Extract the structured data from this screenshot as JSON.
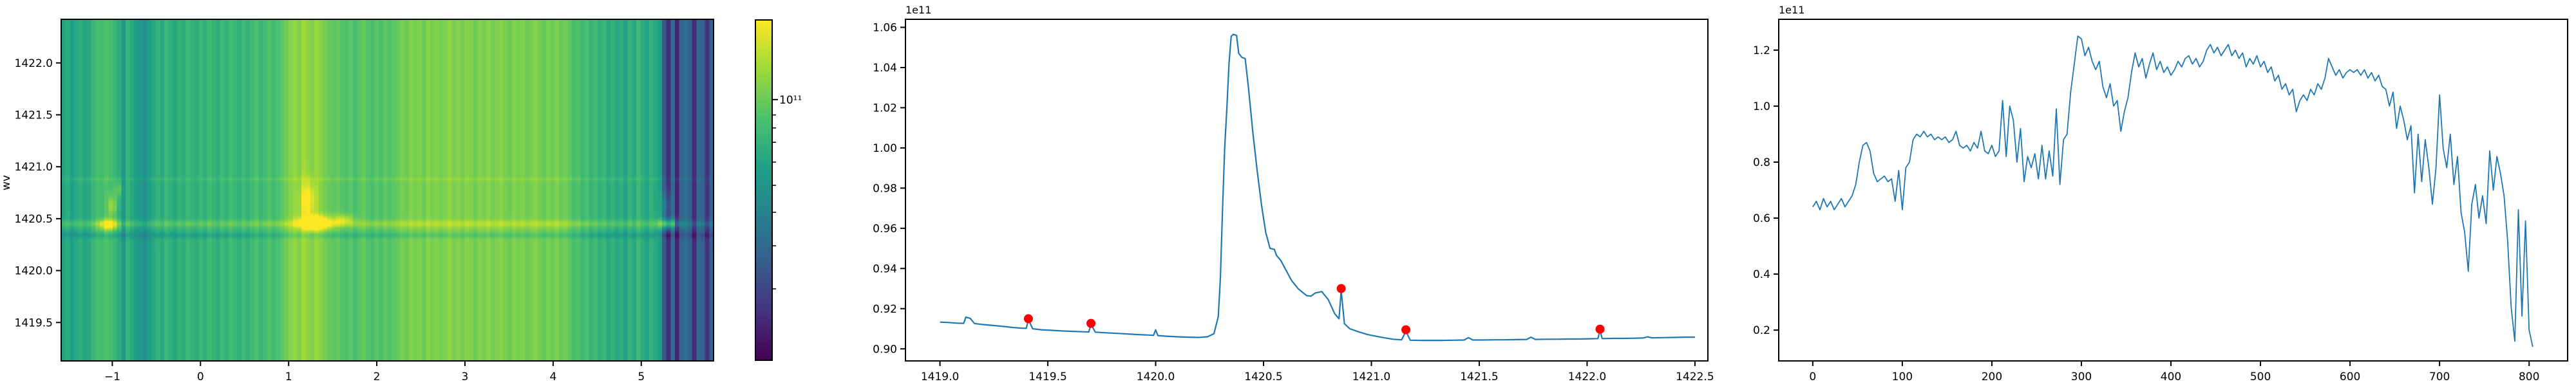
{
  "palette": {
    "line_color": "#1f77b4",
    "marker_color": "#ff0000",
    "axis_color": "#000000",
    "background": "#ffffff",
    "viridis_stops": [
      [
        0,
        "#440154"
      ],
      [
        0.14,
        "#46327e"
      ],
      [
        0.28,
        "#365c8d"
      ],
      [
        0.42,
        "#277f8e"
      ],
      [
        0.57,
        "#1fa187"
      ],
      [
        0.71,
        "#4ac16d"
      ],
      [
        0.86,
        "#a0da39"
      ],
      [
        1,
        "#fde725"
      ]
    ]
  },
  "chart_data": [
    {
      "id": "heatmap",
      "type": "heatmap",
      "ylabel": "wv",
      "xlim": [
        -1.58,
        5.82
      ],
      "ylim": [
        1419.13,
        1422.42
      ],
      "xticks": {
        "values": [
          -1,
          0,
          1,
          2,
          3,
          4,
          5
        ],
        "labels": [
          "−1",
          "0",
          "1",
          "2",
          "3",
          "4",
          "5"
        ]
      },
      "yticks": {
        "values": [
          1419.5,
          1420.0,
          1420.5,
          1421.0,
          1421.5,
          1422.0
        ],
        "labels": [
          "1419.5",
          "1420.0",
          "1420.5",
          "1421.0",
          "1421.5",
          "1422.0"
        ]
      },
      "colorbar": {
        "label": "10¹¹",
        "label_frac_from_top": 0.235,
        "minor_tick_fracs_from_top": [
          0.28,
          0.318,
          0.36,
          0.418,
          0.486,
          0.565,
          0.663,
          0.789
        ]
      },
      "columns": [
        0.58,
        0.62,
        0.57,
        0.6,
        0.63,
        0.59,
        0.61,
        0.66,
        0.7,
        0.68,
        0.72,
        0.69,
        0.66,
        0.62,
        0.52,
        0.65,
        0.6,
        0.55,
        0.54,
        0.5,
        0.56,
        0.6,
        0.64,
        0.61,
        0.66,
        0.63,
        0.6,
        0.65,
        0.62,
        0.67,
        0.64,
        0.62,
        0.66,
        0.63,
        0.68,
        0.65,
        0.62,
        0.67,
        0.64,
        0.69,
        0.66,
        0.63,
        0.68,
        0.64,
        0.68,
        0.71,
        0.66,
        0.69,
        0.72,
        0.68,
        0.71,
        0.74,
        0.78,
        0.81,
        0.84,
        0.8,
        0.86,
        0.83,
        0.8,
        0.84,
        0.81,
        0.78,
        0.76,
        0.74,
        0.76,
        0.73,
        0.71,
        0.74,
        0.7,
        0.73,
        0.76,
        0.72,
        0.7,
        0.74,
        0.71,
        0.75,
        0.72,
        0.74,
        0.76,
        0.79,
        0.77,
        0.81,
        0.78,
        0.8,
        0.77,
        0.82,
        0.79,
        0.81,
        0.78,
        0.8,
        0.83,
        0.79,
        0.81,
        0.78,
        0.82,
        0.8,
        0.77,
        0.81,
        0.79,
        0.82,
        0.78,
        0.8,
        0.82,
        0.79,
        0.77,
        0.81,
        0.78,
        0.8,
        0.77,
        0.79,
        0.81,
        0.78,
        0.76,
        0.79,
        0.77,
        0.8,
        0.76,
        0.78,
        0.74,
        0.7,
        0.72,
        0.67,
        0.7,
        0.65,
        0.68,
        0.63,
        0.66,
        0.61,
        0.64,
        0.6,
        0.63,
        0.58,
        0.65,
        0.6,
        0.67,
        0.62,
        0.58,
        0.64,
        0.6,
        0.56,
        0.28,
        0.12,
        0.34,
        0.1,
        0.32,
        0.35,
        0.3,
        0.12,
        0.33,
        0.3,
        0.14,
        0.31
      ],
      "features": {
        "ridges": [
          {
            "wv": 1420.45,
            "sigma": 0.035,
            "amp": 0.1
          },
          {
            "wv": 1420.34,
            "sigma": 0.028,
            "amp": -0.07
          },
          {
            "wv": 1420.88,
            "sigma": 0.018,
            "amp": 0.035
          }
        ],
        "blobs": [
          {
            "cx": -1.04,
            "cy": 1420.44,
            "sx": 0.1,
            "sy": 0.055,
            "amp": 0.32
          },
          {
            "cx": -1.0,
            "cy": 1420.62,
            "sx": 0.05,
            "sy": 0.1,
            "amp": 0.18
          },
          {
            "cx": -0.93,
            "cy": 1420.78,
            "sx": 0.05,
            "sy": 0.08,
            "amp": 0.12
          },
          {
            "cx": 1.3,
            "cy": 1420.46,
            "sx": 0.17,
            "sy": 0.065,
            "amp": 0.45
          },
          {
            "cx": 1.62,
            "cy": 1420.49,
            "sx": 0.12,
            "sy": 0.05,
            "amp": 0.18
          },
          {
            "cx": 1.22,
            "cy": 1420.68,
            "sx": 0.08,
            "sy": 0.17,
            "amp": 0.22
          },
          {
            "cx": 5.3,
            "cy": 1420.45,
            "sx": 0.09,
            "sy": 0.055,
            "amp": 0.4
          },
          {
            "cx": 5.28,
            "cy": 1420.63,
            "sx": 0.05,
            "sy": 0.13,
            "amp": 0.18
          }
        ]
      }
    },
    {
      "id": "spectrum",
      "type": "line",
      "offset_label": "1e11",
      "xlim": [
        1418.84,
        1422.56
      ],
      "ylim": [
        0.894,
        1.064
      ],
      "xticks": {
        "values": [
          1419.0,
          1419.5,
          1420.0,
          1420.5,
          1421.0,
          1421.5,
          1422.0,
          1422.5
        ],
        "labels": [
          "1419.0",
          "1419.5",
          "1420.0",
          "1420.5",
          "1421.0",
          "1421.5",
          "1422.0",
          "1422.5"
        ]
      },
      "yticks": {
        "values": [
          0.9,
          0.92,
          0.94,
          0.96,
          0.98,
          1.0,
          1.02,
          1.04,
          1.06
        ],
        "labels": [
          "0.90",
          "0.92",
          "0.94",
          "0.96",
          "0.98",
          "1.00",
          "1.02",
          "1.04",
          "1.06"
        ]
      },
      "points": [
        [
          1419.0,
          0.9133
        ],
        [
          1419.04,
          0.9131
        ],
        [
          1419.08,
          0.9128
        ],
        [
          1419.11,
          0.9127
        ],
        [
          1419.12,
          0.9158
        ],
        [
          1419.14,
          0.9152
        ],
        [
          1419.16,
          0.9126
        ],
        [
          1419.2,
          0.9121
        ],
        [
          1419.25,
          0.9116
        ],
        [
          1419.3,
          0.9111
        ],
        [
          1419.34,
          0.9106
        ],
        [
          1419.38,
          0.9103
        ],
        [
          1419.4,
          0.9102
        ],
        [
          1419.41,
          0.9145
        ],
        [
          1419.43,
          0.91
        ],
        [
          1419.47,
          0.9095
        ],
        [
          1419.52,
          0.9092
        ],
        [
          1419.57,
          0.9089
        ],
        [
          1419.62,
          0.9087
        ],
        [
          1419.66,
          0.9085
        ],
        [
          1419.69,
          0.9084
        ],
        [
          1419.7,
          0.9122
        ],
        [
          1419.72,
          0.9083
        ],
        [
          1419.77,
          0.908
        ],
        [
          1419.82,
          0.9077
        ],
        [
          1419.87,
          0.9074
        ],
        [
          1419.92,
          0.9071
        ],
        [
          1419.96,
          0.9069
        ],
        [
          1419.99,
          0.9067
        ],
        [
          1420.0,
          0.9095
        ],
        [
          1420.01,
          0.9066
        ],
        [
          1420.05,
          0.9063
        ],
        [
          1420.1,
          0.906
        ],
        [
          1420.15,
          0.9058
        ],
        [
          1420.2,
          0.9057
        ],
        [
          1420.24,
          0.906
        ],
        [
          1420.27,
          0.9075
        ],
        [
          1420.29,
          0.916
        ],
        [
          1420.3,
          0.935
        ],
        [
          1420.31,
          0.97
        ],
        [
          1420.32,
          1.0
        ],
        [
          1420.33,
          1.02
        ],
        [
          1420.34,
          1.042
        ],
        [
          1420.35,
          1.0555
        ],
        [
          1420.36,
          1.0565
        ],
        [
          1420.375,
          1.056
        ],
        [
          1420.385,
          1.047
        ],
        [
          1420.4,
          1.045
        ],
        [
          1420.415,
          1.0445
        ],
        [
          1420.43,
          1.03
        ],
        [
          1420.45,
          1.008
        ],
        [
          1420.47,
          0.989
        ],
        [
          1420.49,
          0.972
        ],
        [
          1420.51,
          0.958
        ],
        [
          1420.53,
          0.95
        ],
        [
          1420.55,
          0.9495
        ],
        [
          1420.56,
          0.9465
        ],
        [
          1420.58,
          0.944
        ],
        [
          1420.6,
          0.94
        ],
        [
          1420.63,
          0.934
        ],
        [
          1420.66,
          0.93
        ],
        [
          1420.68,
          0.9282
        ],
        [
          1420.7,
          0.9265
        ],
        [
          1420.72,
          0.9262
        ],
        [
          1420.74,
          0.9278
        ],
        [
          1420.77,
          0.9285
        ],
        [
          1420.8,
          0.9245
        ],
        [
          1420.83,
          0.9175
        ],
        [
          1420.85,
          0.915
        ],
        [
          1420.86,
          0.929
        ],
        [
          1420.875,
          0.9125
        ],
        [
          1420.9,
          0.91
        ],
        [
          1420.94,
          0.9085
        ],
        [
          1420.98,
          0.9072
        ],
        [
          1421.02,
          0.9063
        ],
        [
          1421.06,
          0.9055
        ],
        [
          1421.1,
          0.9048
        ],
        [
          1421.14,
          0.9045
        ],
        [
          1421.16,
          0.9088
        ],
        [
          1421.18,
          0.9043
        ],
        [
          1421.23,
          0.9042
        ],
        [
          1421.28,
          0.9042
        ],
        [
          1421.33,
          0.9042
        ],
        [
          1421.38,
          0.9043
        ],
        [
          1421.43,
          0.9044
        ],
        [
          1421.45,
          0.9056
        ],
        [
          1421.47,
          0.9044
        ],
        [
          1421.52,
          0.9044
        ],
        [
          1421.57,
          0.9045
        ],
        [
          1421.62,
          0.9045
        ],
        [
          1421.67,
          0.9046
        ],
        [
          1421.72,
          0.9047
        ],
        [
          1421.74,
          0.9058
        ],
        [
          1421.76,
          0.9047
        ],
        [
          1421.81,
          0.9048
        ],
        [
          1421.86,
          0.9048
        ],
        [
          1421.91,
          0.9049
        ],
        [
          1421.96,
          0.9049
        ],
        [
          1422.01,
          0.905
        ],
        [
          1422.05,
          0.9051
        ],
        [
          1422.06,
          0.9092
        ],
        [
          1422.07,
          0.9051
        ],
        [
          1422.12,
          0.9052
        ],
        [
          1422.17,
          0.9052
        ],
        [
          1422.22,
          0.9053
        ],
        [
          1422.26,
          0.9054
        ],
        [
          1422.28,
          0.906
        ],
        [
          1422.3,
          0.9055
        ],
        [
          1422.35,
          0.9056
        ],
        [
          1422.4,
          0.9057
        ],
        [
          1422.45,
          0.9058
        ],
        [
          1422.5,
          0.9058
        ]
      ],
      "markers": [
        [
          1419.41,
          0.915
        ],
        [
          1419.7,
          0.9127
        ],
        [
          1420.86,
          0.93
        ],
        [
          1421.16,
          0.9095
        ],
        [
          1422.06,
          0.9098
        ]
      ]
    },
    {
      "id": "lightcurve",
      "type": "line",
      "offset_label": "1e11",
      "xlim": [
        -38,
        843
      ],
      "ylim": [
        0.09,
        1.31
      ],
      "xticks": {
        "values": [
          0,
          100,
          200,
          300,
          400,
          500,
          600,
          700,
          800
        ],
        "labels": [
          "0",
          "100",
          "200",
          "300",
          "400",
          "500",
          "600",
          "700",
          "800"
        ]
      },
      "yticks": {
        "values": [
          0.2,
          0.4,
          0.6,
          0.8,
          1.0,
          1.2
        ],
        "labels": [
          "0.2",
          "0.4",
          "0.6",
          "0.8",
          "1.0",
          "1.2"
        ]
      },
      "x_start": 0,
      "x_step": 4,
      "y": [
        0.64,
        0.66,
        0.63,
        0.67,
        0.64,
        0.66,
        0.63,
        0.65,
        0.67,
        0.64,
        0.66,
        0.68,
        0.72,
        0.8,
        0.86,
        0.87,
        0.84,
        0.76,
        0.73,
        0.74,
        0.75,
        0.73,
        0.74,
        0.66,
        0.77,
        0.63,
        0.78,
        0.8,
        0.88,
        0.9,
        0.89,
        0.91,
        0.89,
        0.9,
        0.88,
        0.89,
        0.88,
        0.89,
        0.87,
        0.88,
        0.91,
        0.86,
        0.85,
        0.86,
        0.84,
        0.87,
        0.85,
        0.91,
        0.84,
        0.83,
        0.86,
        0.82,
        0.84,
        1.02,
        0.82,
        1.0,
        0.95,
        0.8,
        0.92,
        0.73,
        0.82,
        0.78,
        0.83,
        0.74,
        0.86,
        0.74,
        0.84,
        0.75,
        0.99,
        0.72,
        0.88,
        0.9,
        1.05,
        1.15,
        1.25,
        1.24,
        1.18,
        1.21,
        1.16,
        1.13,
        1.16,
        1.07,
        1.03,
        1.08,
        1.0,
        1.02,
        0.91,
        0.98,
        1.03,
        1.12,
        1.19,
        1.14,
        1.17,
        1.1,
        1.15,
        1.19,
        1.13,
        1.16,
        1.12,
        1.14,
        1.11,
        1.13,
        1.16,
        1.14,
        1.17,
        1.18,
        1.15,
        1.17,
        1.14,
        1.16,
        1.2,
        1.22,
        1.19,
        1.21,
        1.18,
        1.2,
        1.22,
        1.18,
        1.2,
        1.17,
        1.19,
        1.14,
        1.17,
        1.15,
        1.18,
        1.14,
        1.16,
        1.12,
        1.14,
        1.09,
        1.11,
        1.06,
        1.08,
        1.04,
        1.06,
        0.98,
        1.02,
        1.04,
        1.02,
        1.06,
        1.04,
        1.08,
        1.06,
        1.1,
        1.17,
        1.14,
        1.11,
        1.13,
        1.1,
        1.12,
        1.13,
        1.12,
        1.13,
        1.11,
        1.13,
        1.1,
        1.12,
        1.09,
        1.11,
        1.07,
        1.06,
        1.0,
        1.05,
        0.92,
        1.0,
        0.95,
        0.88,
        0.93,
        0.69,
        0.9,
        0.73,
        0.88,
        0.78,
        0.65,
        0.78,
        1.04,
        0.85,
        0.78,
        0.9,
        0.72,
        0.82,
        0.62,
        0.55,
        0.41,
        0.65,
        0.72,
        0.6,
        0.68,
        0.58,
        0.84,
        0.7,
        0.82,
        0.76,
        0.68,
        0.52,
        0.28,
        0.16,
        0.63,
        0.25,
        0.59,
        0.2,
        0.14
      ]
    }
  ]
}
